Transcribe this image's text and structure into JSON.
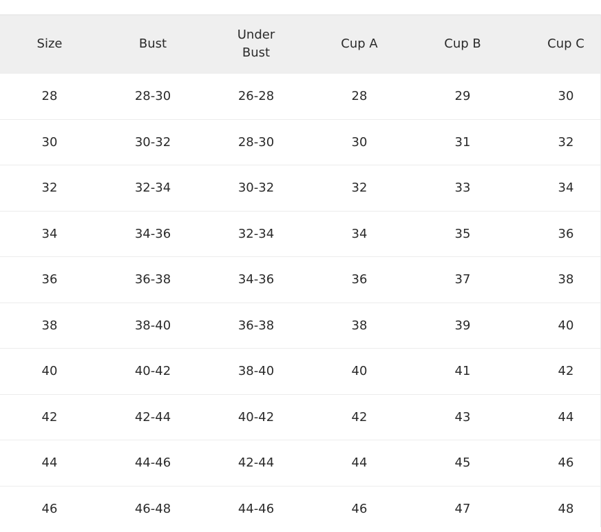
{
  "table": {
    "headers": [
      "Size",
      "Bust",
      "Under\nBust",
      "Cup A",
      "Cup B",
      "Cup C"
    ],
    "rows": [
      [
        "28",
        "28-30",
        "26-28",
        "28",
        "29",
        "30"
      ],
      [
        "30",
        "30-32",
        "28-30",
        "30",
        "31",
        "32"
      ],
      [
        "32",
        "32-34",
        "30-32",
        "32",
        "33",
        "34"
      ],
      [
        "34",
        "34-36",
        "32-34",
        "34",
        "35",
        "36"
      ],
      [
        "36",
        "36-38",
        "34-36",
        "36",
        "37",
        "38"
      ],
      [
        "38",
        "38-40",
        "36-38",
        "38",
        "39",
        "40"
      ],
      [
        "40",
        "40-42",
        "38-40",
        "40",
        "41",
        "42"
      ],
      [
        "42",
        "42-44",
        "40-42",
        "42",
        "43",
        "44"
      ],
      [
        "44",
        "44-46",
        "42-44",
        "44",
        "45",
        "46"
      ],
      [
        "46",
        "46-48",
        "44-46",
        "46",
        "47",
        "48"
      ]
    ]
  },
  "colors": {
    "header_bg": "#efefef",
    "text": "#2a2a2a",
    "divider": "#ececec"
  }
}
